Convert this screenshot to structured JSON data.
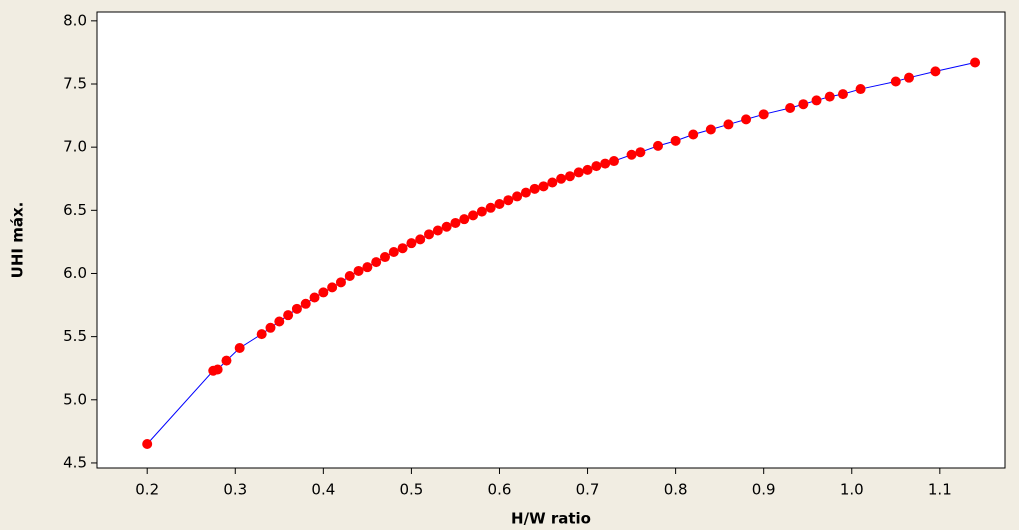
{
  "chart_data": {
    "type": "scatter",
    "x_label": "H/W ratio",
    "y_label": "UHI máx.",
    "x": [
      0.2,
      0.275,
      0.28,
      0.29,
      0.305,
      0.33,
      0.34,
      0.35,
      0.36,
      0.37,
      0.38,
      0.39,
      0.4,
      0.41,
      0.42,
      0.43,
      0.44,
      0.45,
      0.46,
      0.47,
      0.48,
      0.49,
      0.5,
      0.51,
      0.52,
      0.53,
      0.54,
      0.55,
      0.56,
      0.57,
      0.58,
      0.59,
      0.6,
      0.61,
      0.62,
      0.63,
      0.64,
      0.65,
      0.66,
      0.67,
      0.68,
      0.69,
      0.7,
      0.71,
      0.72,
      0.73,
      0.75,
      0.76,
      0.78,
      0.8,
      0.82,
      0.84,
      0.86,
      0.88,
      0.9,
      0.93,
      0.945,
      0.96,
      0.975,
      0.99,
      1.01,
      1.05,
      1.065,
      1.095,
      1.14
    ],
    "series": [
      {
        "color": "#ff0000",
        "line_color": "#0000ff",
        "values": [
          4.65,
          5.23,
          5.24,
          5.31,
          5.41,
          5.52,
          5.57,
          5.62,
          5.67,
          5.72,
          5.76,
          5.81,
          5.85,
          5.89,
          5.93,
          5.98,
          6.02,
          6.05,
          6.09,
          6.13,
          6.17,
          6.2,
          6.24,
          6.27,
          6.31,
          6.34,
          6.37,
          6.4,
          6.43,
          6.46,
          6.49,
          6.52,
          6.55,
          6.58,
          6.61,
          6.64,
          6.67,
          6.69,
          6.72,
          6.75,
          6.77,
          6.8,
          6.82,
          6.85,
          6.87,
          6.89,
          6.94,
          6.96,
          7.01,
          7.05,
          7.1,
          7.14,
          7.18,
          7.22,
          7.26,
          7.31,
          7.34,
          7.37,
          7.4,
          7.42,
          7.46,
          7.52,
          7.55,
          7.6,
          7.67
        ]
      }
    ],
    "xlim": [
      0.143,
      1.174
    ],
    "ylim": [
      4.46,
      8.07
    ],
    "xticks": [
      0.2,
      0.3,
      0.4,
      0.5,
      0.6,
      0.7,
      0.8,
      0.9,
      {
        "value": 1,
        "label": "1.0"
      },
      1.1
    ],
    "yticks": [
      4.5,
      {
        "value": 5,
        "label": "5.0"
      },
      5.5,
      {
        "value": 6,
        "label": "6.0"
      },
      6.5,
      {
        "value": 7,
        "label": "7.0"
      },
      7.5,
      {
        "value": 8,
        "label": "8.0"
      }
    ]
  }
}
